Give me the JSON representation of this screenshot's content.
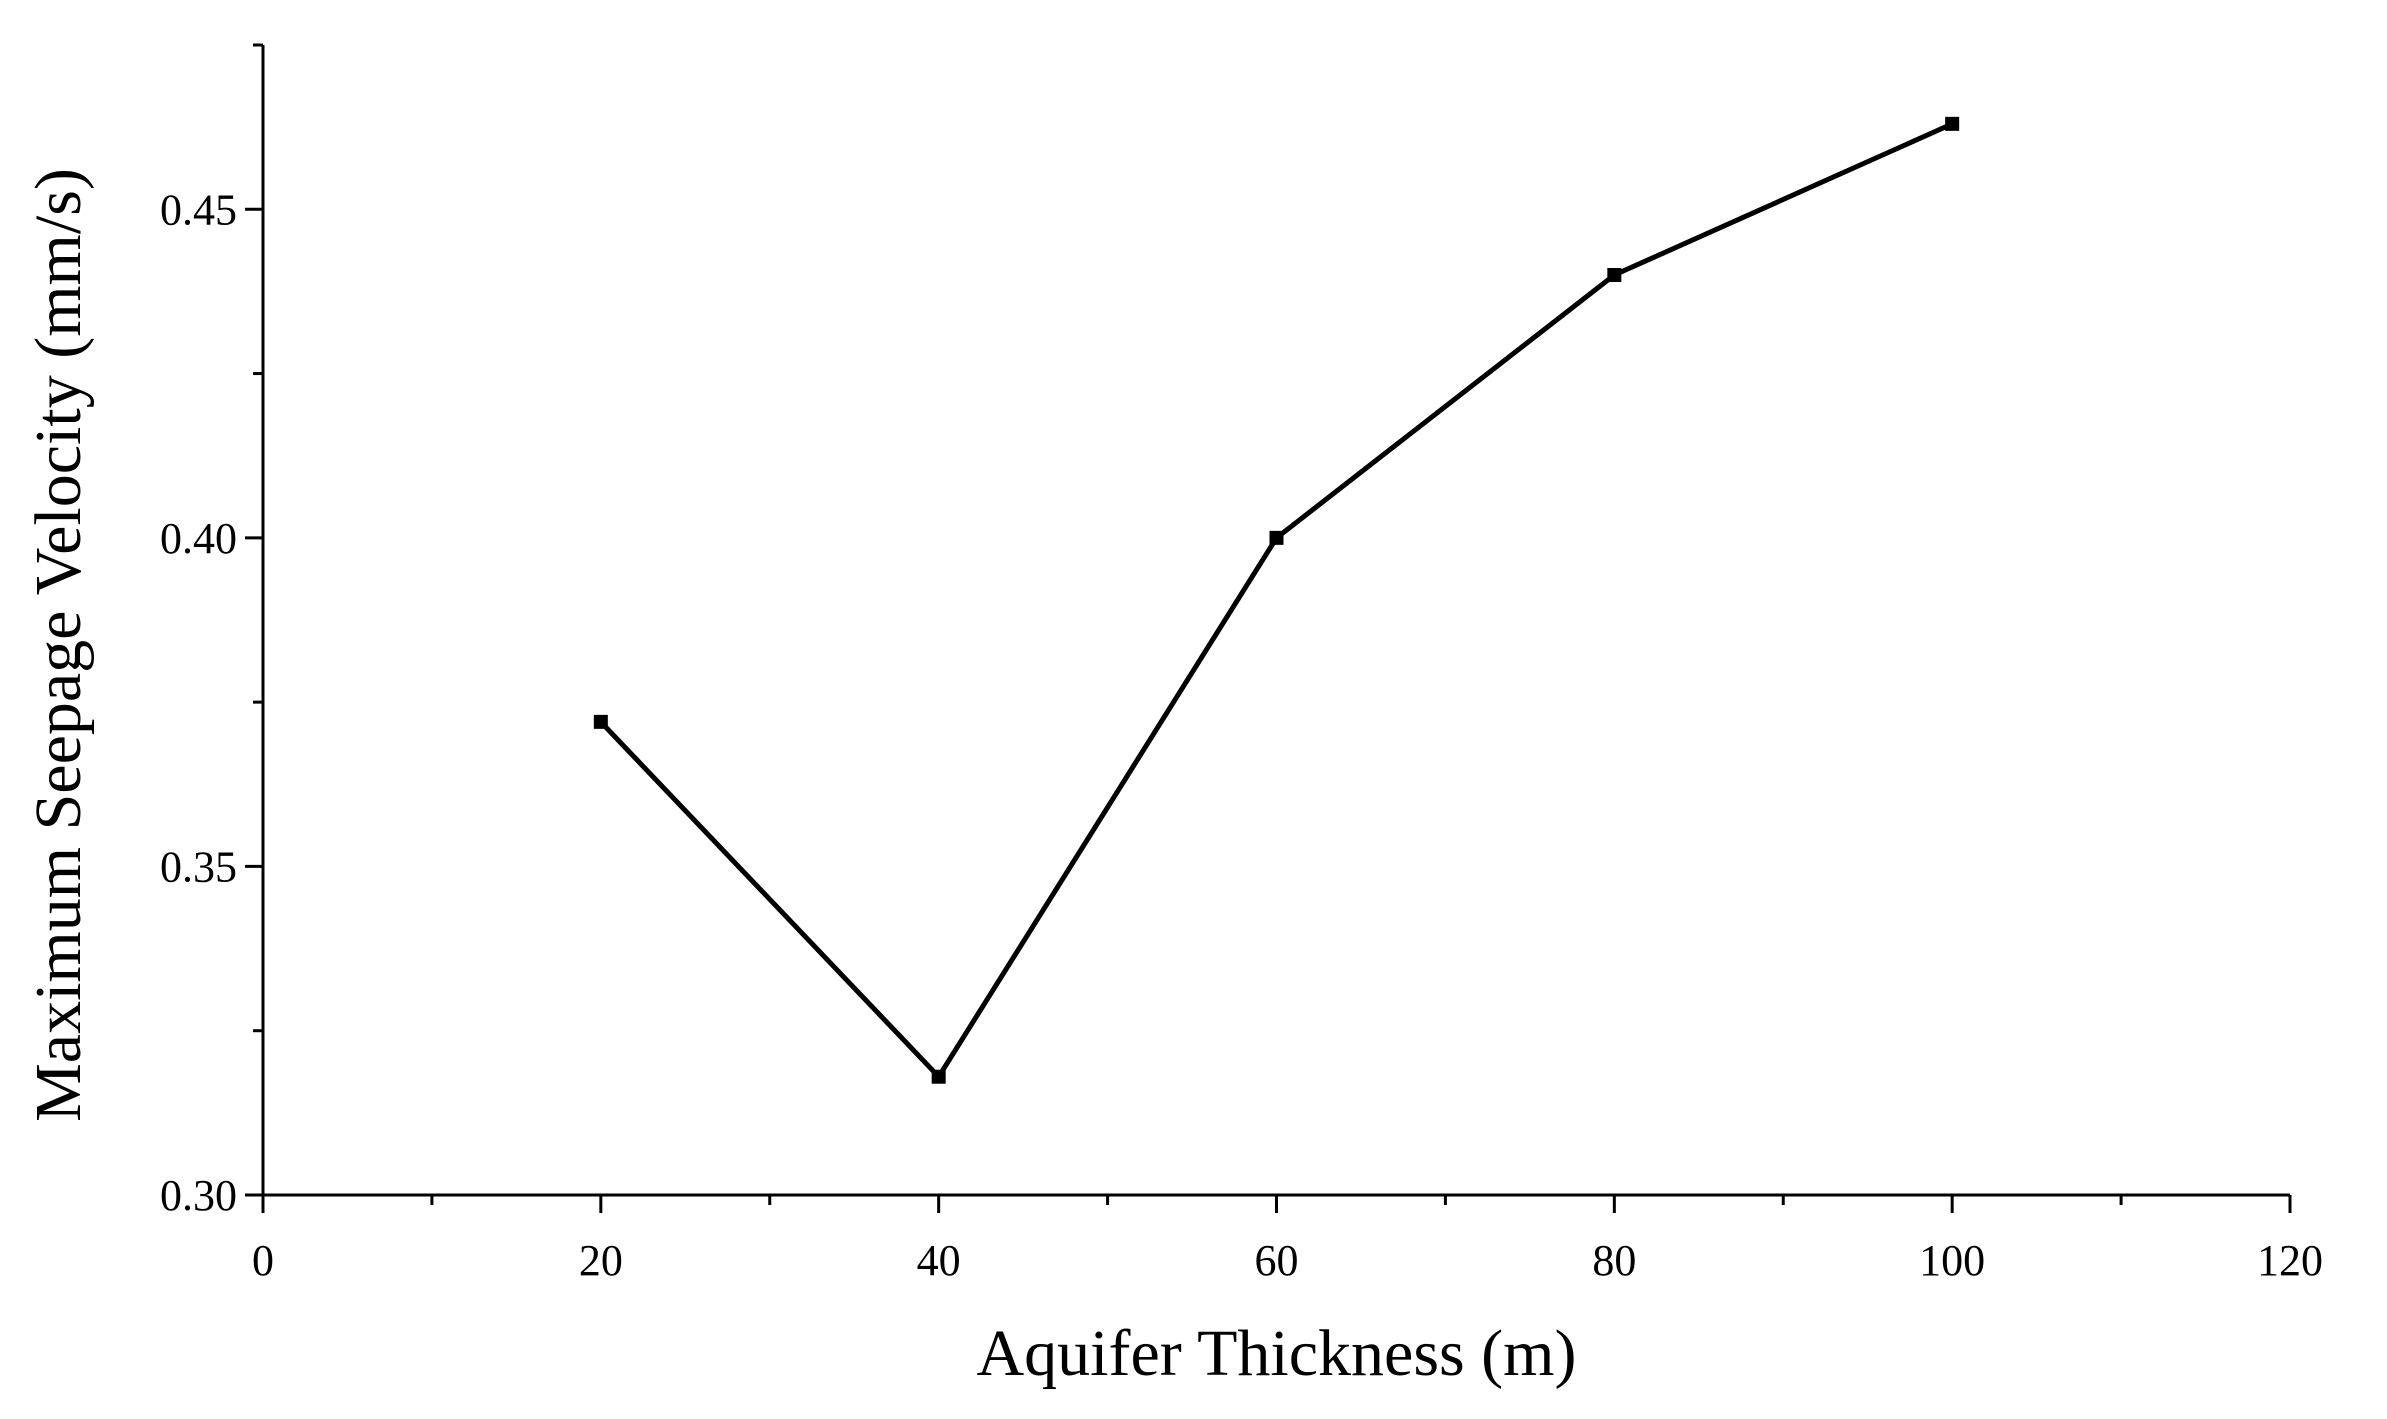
{
  "chart_data": {
    "type": "line",
    "title": "",
    "xlabel": "Aquifer Thickness (m)",
    "ylabel": "Maximum Seepage Velocity (mm/s)",
    "xlim": [
      0,
      120
    ],
    "ylim": [
      0.3,
      0.475
    ],
    "x_ticks": [
      "0",
      "20",
      "40",
      "60",
      "80",
      "100",
      "120"
    ],
    "y_ticks": [
      "0.30",
      "0.35",
      "0.40",
      "0.45"
    ],
    "x": [
      20,
      40,
      60,
      80,
      100
    ],
    "y": [
      0.372,
      0.318,
      0.4,
      0.44,
      0.463
    ],
    "marker": "square",
    "grid": false,
    "legend": "none",
    "line_color": "#000000"
  }
}
